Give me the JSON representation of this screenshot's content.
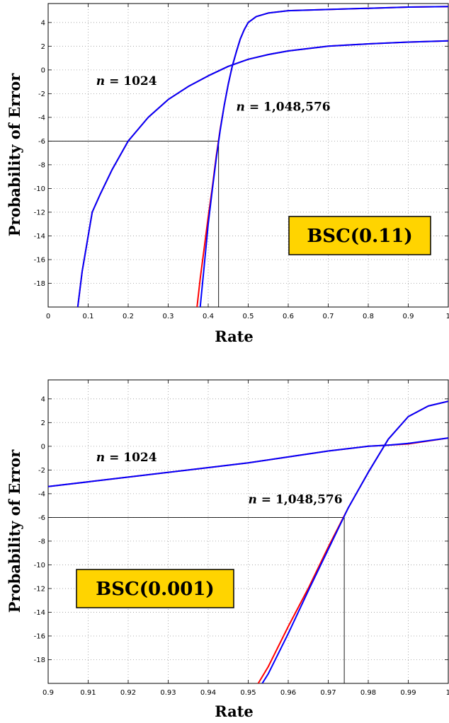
{
  "chart_data": [
    {
      "type": "line",
      "xlabel": "Rate",
      "ylabel": "Probability of Error",
      "xlim": [
        0,
        1
      ],
      "ylim": [
        -20,
        5.6
      ],
      "xticks": [
        "0",
        "0.1",
        "0.2",
        "0.3",
        "0.4",
        "0.5",
        "0.6",
        "0.7",
        "0.8",
        "0.9",
        "1"
      ],
      "xtick_values": [
        0,
        0.1,
        0.2,
        0.3,
        0.4,
        0.5,
        0.6,
        0.7,
        0.8,
        0.9,
        1
      ],
      "yticks": [
        "4",
        "2",
        "0",
        "-2",
        "-4",
        "-6",
        "-8",
        "-10",
        "-12",
        "-14",
        "-16",
        "-18"
      ],
      "ytick_values": [
        4,
        2,
        0,
        -2,
        -4,
        -6,
        -8,
        -10,
        -12,
        -14,
        -16,
        -18
      ],
      "grid": true,
      "box_label": "BSC(0.11)",
      "annotations": [
        {
          "prefix": "n",
          "text": " = 1024",
          "x": 0.12,
          "y": -1.25
        },
        {
          "prefix": "n",
          "text": " = 1,048,576",
          "x": 0.47,
          "y": -3.45
        }
      ],
      "reference": {
        "x": 0.426,
        "y": -6
      },
      "series": [
        {
          "color": "#ff0000",
          "x": [
            0.074,
            0.085,
            0.095,
            0.11,
            0.13,
            0.16,
            0.2,
            0.25,
            0.3,
            0.35,
            0.4,
            0.45,
            0.5,
            0.55,
            0.6,
            0.7,
            0.8,
            0.9,
            1.0
          ],
          "y": [
            -20,
            -17,
            -15,
            -12,
            -10.5,
            -8.4,
            -6,
            -4,
            -2.5,
            -1.4,
            -0.5,
            0.3,
            0.9,
            1.3,
            1.6,
            2.0,
            2.2,
            2.35,
            2.45
          ]
        },
        {
          "color": "#0000ff",
          "x": [
            0.074,
            0.085,
            0.095,
            0.11,
            0.13,
            0.16,
            0.2,
            0.25,
            0.3,
            0.35,
            0.4,
            0.45,
            0.5,
            0.55,
            0.6,
            0.7,
            0.8,
            0.9,
            1.0
          ],
          "y": [
            -20,
            -17,
            -15,
            -12,
            -10.5,
            -8.4,
            -6,
            -4,
            -2.5,
            -1.4,
            -0.5,
            0.3,
            0.9,
            1.3,
            1.6,
            2.0,
            2.2,
            2.35,
            2.45
          ]
        },
        {
          "color": "#ff0000",
          "x": [
            0.372,
            0.38,
            0.39,
            0.4,
            0.41,
            0.42,
            0.43,
            0.44,
            0.45,
            0.46,
            0.47,
            0.48,
            0.49,
            0.5,
            0.52,
            0.55,
            0.6,
            0.7,
            0.8,
            0.9,
            1.0
          ],
          "y": [
            -20,
            -17.6,
            -15,
            -12.4,
            -10,
            -7.3,
            -5,
            -3,
            -1.2,
            0.3,
            1.5,
            2.6,
            3.4,
            4.0,
            4.5,
            4.8,
            5.0,
            5.1,
            5.2,
            5.3,
            5.35
          ]
        },
        {
          "color": "#0000ff",
          "x": [
            0.38,
            0.39,
            0.4,
            0.41,
            0.42,
            0.43,
            0.44,
            0.45,
            0.46,
            0.47,
            0.48,
            0.49,
            0.5,
            0.52,
            0.55,
            0.6,
            0.7,
            0.8,
            0.9,
            1.0
          ],
          "y": [
            -20,
            -16.5,
            -13,
            -10.2,
            -7.5,
            -5.1,
            -3,
            -1.2,
            0.3,
            1.5,
            2.6,
            3.4,
            4.0,
            4.5,
            4.8,
            5.0,
            5.1,
            5.2,
            5.3,
            5.35
          ]
        }
      ]
    },
    {
      "type": "line",
      "xlabel": "Rate",
      "ylabel": "Probability of Error",
      "xlim": [
        0.9,
        1
      ],
      "ylim": [
        -20,
        5.6
      ],
      "xticks": [
        "0.9",
        "0.91",
        "0.92",
        "0.93",
        "0.94",
        "0.95",
        "0.96",
        "0.97",
        "0.98",
        "0.99",
        "1"
      ],
      "xtick_values": [
        0.9,
        0.91,
        0.92,
        0.93,
        0.94,
        0.95,
        0.96,
        0.97,
        0.98,
        0.99,
        1
      ],
      "yticks": [
        "4",
        "2",
        "0",
        "-2",
        "-4",
        "-6",
        "-8",
        "-10",
        "-12",
        "-14",
        "-16",
        "-18"
      ],
      "ytick_values": [
        4,
        2,
        0,
        -2,
        -4,
        -6,
        -8,
        -10,
        -12,
        -14,
        -16,
        -18
      ],
      "grid": true,
      "box_label": "BSC(0.001)",
      "annotations": [
        {
          "prefix": "n",
          "text": " = 1024",
          "x": 0.912,
          "y": -1.25
        },
        {
          "prefix": "n",
          "text": " = 1,048,576",
          "x": 0.95,
          "y": -4.8
        }
      ],
      "reference": {
        "x": 0.974,
        "y": -6
      },
      "series": [
        {
          "color": "#ff0000",
          "x": [
            0.9,
            0.92,
            0.94,
            0.95,
            0.96,
            0.97,
            0.98,
            0.985,
            0.99,
            1.0
          ],
          "y": [
            -3.4,
            -2.6,
            -1.8,
            -1.4,
            -0.9,
            -0.4,
            0.0,
            0.1,
            0.2,
            0.7
          ]
        },
        {
          "color": "#0000ff",
          "x": [
            0.9,
            0.92,
            0.94,
            0.95,
            0.96,
            0.97,
            0.98,
            0.985,
            0.99,
            1.0
          ],
          "y": [
            -3.4,
            -2.6,
            -1.8,
            -1.4,
            -0.9,
            -0.4,
            0.0,
            0.1,
            0.25,
            0.7
          ]
        },
        {
          "color": "#ff0000",
          "x": [
            0.9525,
            0.955,
            0.96,
            0.965,
            0.97,
            0.975,
            0.98,
            0.985,
            0.99,
            0.995,
            1.0
          ],
          "y": [
            -20,
            -18.6,
            -15.2,
            -12,
            -8.5,
            -5.2,
            -2.2,
            0.6,
            2.5,
            3.4,
            3.8
          ]
        },
        {
          "color": "#0000ff",
          "x": [
            0.9535,
            0.955,
            0.96,
            0.965,
            0.97,
            0.975,
            0.98,
            0.985,
            0.99,
            0.995,
            1.0
          ],
          "y": [
            -20,
            -19.2,
            -15.8,
            -12.2,
            -8.7,
            -5.2,
            -2.2,
            0.6,
            2.5,
            3.4,
            3.8
          ]
        }
      ]
    }
  ]
}
